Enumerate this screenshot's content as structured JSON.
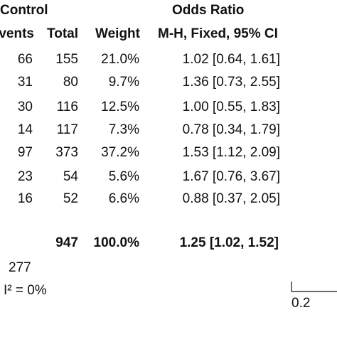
{
  "chart_data": {
    "type": "table",
    "group_header": "Control",
    "odds_ratio_header": "Odds Ratio",
    "columns": [
      "vents",
      "Total",
      "Weight",
      "M-H, Fixed, 95% CI"
    ],
    "rows": [
      {
        "events": "66",
        "total": "155",
        "weight": "21.0%",
        "or": "1.02 [0.64, 1.61]"
      },
      {
        "events": "31",
        "total": "80",
        "weight": "9.7%",
        "or": "1.36 [0.73, 2.55]"
      },
      {
        "events": "30",
        "total": "116",
        "weight": "12.5%",
        "or": "1.00 [0.55, 1.83]"
      },
      {
        "events": "14",
        "total": "117",
        "weight": "7.3%",
        "or": "0.78 [0.34, 1.79]"
      },
      {
        "events": "97",
        "total": "373",
        "weight": "37.2%",
        "or": "1.53 [1.12, 2.09]"
      },
      {
        "events": "23",
        "total": "54",
        "weight": "5.6%",
        "or": "1.67 [0.76, 3.67]"
      },
      {
        "events": "16",
        "total": "52",
        "weight": "6.6%",
        "or": "0.88 [0.37, 2.05]"
      }
    ],
    "total_row": {
      "total": "947",
      "weight": "100.0%",
      "or": "1.25 [1.02, 1.52]"
    },
    "total_events": "277",
    "heterogeneity": "I² = 0%",
    "axis_tick_label": "0.2"
  }
}
